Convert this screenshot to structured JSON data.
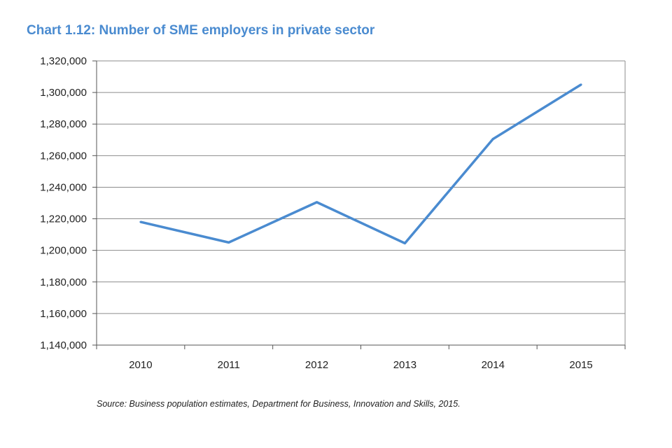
{
  "chart_data": {
    "type": "line",
    "title": "Chart 1.12: Number of SME employers in private sector",
    "xlabel": "",
    "ylabel": "",
    "categories": [
      "2010",
      "2011",
      "2012",
      "2013",
      "2014",
      "2015"
    ],
    "series": [
      {
        "name": "SME employers",
        "color": "#4a8bd0",
        "values": [
          1218000,
          1205000,
          1230500,
          1204500,
          1270500,
          1305000
        ]
      }
    ],
    "ylim": [
      1140000,
      1320000
    ],
    "yticks": [
      1140000,
      1160000,
      1180000,
      1200000,
      1220000,
      1240000,
      1260000,
      1280000,
      1300000,
      1320000
    ],
    "ytick_labels": [
      "1,140,000",
      "1,160,000",
      "1,180,000",
      "1,200,000",
      "1,220,000",
      "1,240,000",
      "1,260,000",
      "1,280,000",
      "1,300,000",
      "1,320,000"
    ],
    "grid": true,
    "source": "Source:  Business population estimates, Department for Business, Innovation and Skills, 2015."
  }
}
